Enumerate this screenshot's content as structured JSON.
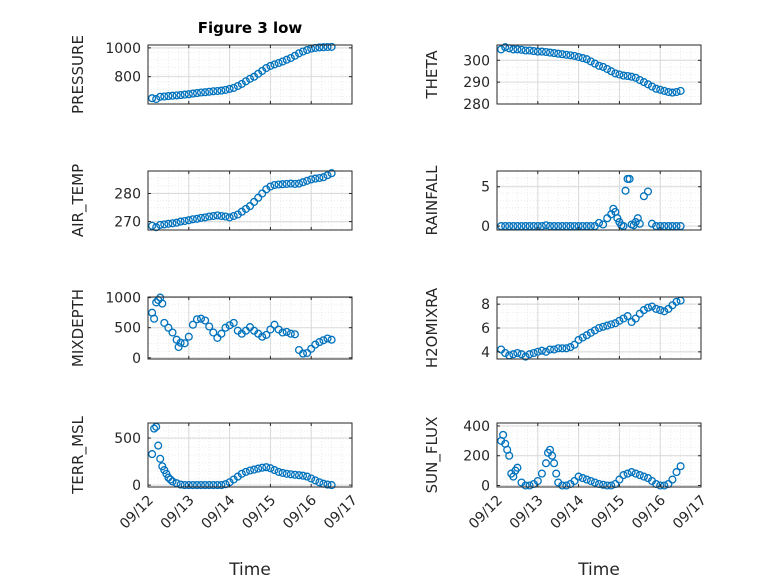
{
  "figure": {
    "title": "Figure 3 low",
    "marker_color": "#0072BD"
  },
  "chart_data": [
    {
      "type": "scatter",
      "id": "pressure",
      "title": "Figure 3 low",
      "ylabel": "PRESSURE",
      "ylim": [
        610,
        1020
      ],
      "yticks": [
        800,
        1000
      ],
      "xlim": [
        0,
        5
      ],
      "xtick_labels": [],
      "xlabel": "",
      "grid": true,
      "series": [
        {
          "x": [
            0.1,
            0.2,
            0.3,
            0.4,
            0.5,
            0.6,
            0.7,
            0.8,
            0.9,
            1.0,
            1.1,
            1.2,
            1.3,
            1.4,
            1.5,
            1.6,
            1.7,
            1.8,
            1.9,
            2.0,
            2.1,
            2.2,
            2.3,
            2.4,
            2.5,
            2.6,
            2.7,
            2.8,
            2.9,
            3.0,
            3.1,
            3.2,
            3.3,
            3.4,
            3.5,
            3.6,
            3.7,
            3.8,
            3.9,
            4.0,
            4.1,
            4.2,
            4.3,
            4.4,
            4.5
          ],
          "y": [
            650,
            645,
            660,
            662,
            665,
            668,
            670,
            672,
            675,
            678,
            682,
            686,
            690,
            692,
            695,
            698,
            700,
            703,
            708,
            715,
            722,
            735,
            750,
            768,
            785,
            800,
            820,
            840,
            860,
            875,
            885,
            895,
            905,
            918,
            930,
            945,
            962,
            975,
            985,
            995,
            1000,
            1003,
            1005,
            1006,
            1007
          ]
        }
      ]
    },
    {
      "type": "scatter",
      "id": "theta",
      "ylabel": "THETA",
      "ylim": [
        280,
        307
      ],
      "yticks": [
        280,
        290,
        300
      ],
      "xlim": [
        0,
        5
      ],
      "xtick_labels": [],
      "xlabel": "",
      "grid": true,
      "series": [
        {
          "x": [
            0.1,
            0.2,
            0.3,
            0.4,
            0.5,
            0.6,
            0.7,
            0.8,
            0.9,
            1.0,
            1.1,
            1.2,
            1.3,
            1.4,
            1.5,
            1.6,
            1.7,
            1.8,
            1.9,
            2.0,
            2.1,
            2.2,
            2.3,
            2.4,
            2.5,
            2.6,
            2.7,
            2.8,
            2.9,
            3.0,
            3.1,
            3.2,
            3.3,
            3.4,
            3.5,
            3.6,
            3.7,
            3.8,
            3.9,
            4.0,
            4.1,
            4.2,
            4.3,
            4.4,
            4.5
          ],
          "y": [
            305,
            306,
            305.5,
            305,
            305,
            304.8,
            304.5,
            304.5,
            304.2,
            304,
            304,
            303.8,
            303.5,
            303.3,
            303,
            302.8,
            302.5,
            302.3,
            302,
            301.5,
            301,
            300.5,
            299.5,
            298.5,
            297.5,
            297,
            296,
            295,
            294,
            293.5,
            293,
            292.8,
            292.5,
            292,
            291,
            290,
            289,
            288,
            287,
            286.5,
            286,
            285.5,
            285.2,
            285.5,
            286
          ]
        }
      ]
    },
    {
      "type": "scatter",
      "id": "airtemp",
      "ylabel": "AIR_TEMP",
      "ylim": [
        267,
        288
      ],
      "yticks": [
        270,
        280
      ],
      "xlim": [
        0,
        5
      ],
      "xtick_labels": [],
      "xlabel": "",
      "grid": true,
      "series": [
        {
          "x": [
            0.1,
            0.2,
            0.3,
            0.4,
            0.5,
            0.6,
            0.7,
            0.8,
            0.9,
            1.0,
            1.1,
            1.2,
            1.3,
            1.4,
            1.5,
            1.6,
            1.7,
            1.8,
            1.9,
            2.0,
            2.1,
            2.2,
            2.3,
            2.4,
            2.5,
            2.6,
            2.7,
            2.8,
            2.9,
            3.0,
            3.1,
            3.2,
            3.3,
            3.4,
            3.5,
            3.6,
            3.7,
            3.8,
            3.9,
            4.0,
            4.1,
            4.2,
            4.3,
            4.4,
            4.5
          ],
          "y": [
            268.5,
            268,
            268.8,
            269,
            269.2,
            269.4,
            269.6,
            270,
            270.2,
            270.5,
            270.8,
            271,
            271.3,
            271.5,
            271.8,
            272,
            272.2,
            272,
            271.8,
            271.5,
            272,
            272.5,
            273.5,
            274.5,
            275.5,
            277,
            278.5,
            280,
            281.5,
            282.5,
            283,
            283.2,
            283.3,
            283.4,
            283.5,
            283.4,
            283.5,
            284,
            284.5,
            285,
            285.3,
            285.5,
            285.8,
            286.5,
            287.2
          ]
        }
      ]
    },
    {
      "type": "scatter",
      "id": "rainfall",
      "ylabel": "RAINFALL",
      "ylim": [
        -0.5,
        7
      ],
      "yticks": [
        0,
        5
      ],
      "xlim": [
        0,
        5
      ],
      "xtick_labels": [],
      "xlabel": "",
      "grid": true,
      "series": [
        {
          "x": [
            0.1,
            0.2,
            0.3,
            0.4,
            0.5,
            0.6,
            0.7,
            0.8,
            0.9,
            1.0,
            1.1,
            1.2,
            1.3,
            1.4,
            1.5,
            1.6,
            1.7,
            1.8,
            1.9,
            2.0,
            2.1,
            2.2,
            2.3,
            2.4,
            2.5,
            2.6,
            2.7,
            2.8,
            2.85,
            2.9,
            2.95,
            3.0,
            3.05,
            3.1,
            3.15,
            3.2,
            3.25,
            3.3,
            3.35,
            3.4,
            3.45,
            3.5,
            3.6,
            3.7,
            3.8,
            3.9,
            4.0,
            4.1,
            4.2,
            4.3,
            4.4,
            4.5
          ],
          "y": [
            0,
            0,
            0,
            0,
            0,
            0,
            0,
            0,
            0,
            0,
            0,
            0.1,
            0,
            0,
            0,
            0,
            0,
            0,
            0,
            0,
            0,
            0,
            0,
            0,
            0.4,
            0.2,
            1.0,
            1.5,
            2.2,
            1.8,
            1.0,
            0.5,
            0.1,
            0,
            4.5,
            6.0,
            6.0,
            0.2,
            0.1,
            0.5,
            1.0,
            0.3,
            3.8,
            4.4,
            0.3,
            0,
            0,
            0,
            0,
            0,
            0,
            0
          ]
        }
      ]
    },
    {
      "type": "scatter",
      "id": "mixdepth",
      "ylabel": "MIXDEPTH",
      "ylim": [
        -20,
        1010
      ],
      "yticks": [
        0,
        500,
        1000
      ],
      "xlim": [
        0,
        5
      ],
      "xtick_labels": [],
      "xlabel": "",
      "grid": true,
      "series": [
        {
          "x": [
            0.1,
            0.15,
            0.2,
            0.25,
            0.3,
            0.35,
            0.4,
            0.5,
            0.6,
            0.7,
            0.75,
            0.8,
            0.9,
            1.0,
            1.1,
            1.2,
            1.3,
            1.4,
            1.5,
            1.6,
            1.7,
            1.8,
            1.9,
            2.0,
            2.1,
            2.2,
            2.3,
            2.4,
            2.5,
            2.6,
            2.7,
            2.8,
            2.9,
            3.0,
            3.1,
            3.2,
            3.3,
            3.4,
            3.5,
            3.6,
            3.7,
            3.8,
            3.9,
            4.0,
            4.1,
            4.2,
            4.3,
            4.4,
            4.5
          ],
          "y": [
            750,
            650,
            920,
            960,
            1000,
            900,
            580,
            500,
            420,
            300,
            180,
            250,
            240,
            350,
            550,
            640,
            650,
            620,
            520,
            420,
            330,
            400,
            500,
            540,
            580,
            450,
            400,
            450,
            510,
            450,
            400,
            350,
            380,
            470,
            550,
            470,
            420,
            430,
            400,
            390,
            130,
            70,
            80,
            150,
            220,
            260,
            290,
            320,
            300
          ]
        }
      ]
    },
    {
      "type": "scatter",
      "id": "h2omixra",
      "ylabel": "H2OMIXRA",
      "ylim": [
        3.4,
        8.6
      ],
      "yticks": [
        4,
        6,
        8
      ],
      "xlim": [
        0,
        5
      ],
      "xtick_labels": [],
      "xlabel": "",
      "grid": true,
      "series": [
        {
          "x": [
            0.1,
            0.2,
            0.3,
            0.4,
            0.5,
            0.6,
            0.7,
            0.8,
            0.9,
            1.0,
            1.1,
            1.2,
            1.3,
            1.4,
            1.5,
            1.6,
            1.7,
            1.8,
            1.9,
            2.0,
            2.1,
            2.2,
            2.3,
            2.4,
            2.5,
            2.6,
            2.7,
            2.8,
            2.9,
            3.0,
            3.1,
            3.2,
            3.3,
            3.4,
            3.5,
            3.6,
            3.7,
            3.8,
            3.9,
            4.0,
            4.1,
            4.2,
            4.3,
            4.4,
            4.5
          ],
          "y": [
            4.2,
            3.9,
            3.7,
            3.8,
            3.9,
            3.8,
            3.6,
            3.8,
            3.9,
            4.0,
            4.1,
            4.0,
            4.2,
            4.2,
            4.3,
            4.3,
            4.3,
            4.4,
            4.6,
            5.0,
            5.2,
            5.4,
            5.6,
            5.8,
            6.0,
            6.1,
            6.2,
            6.3,
            6.4,
            6.6,
            6.8,
            7.0,
            6.5,
            6.8,
            7.2,
            7.5,
            7.7,
            7.8,
            7.6,
            7.5,
            7.4,
            7.6,
            7.9,
            8.2,
            8.3
          ]
        }
      ]
    },
    {
      "type": "scatter",
      "id": "terrmsl",
      "ylabel": "TERR_MSL",
      "ylim": [
        -20,
        660
      ],
      "yticks": [
        0,
        500
      ],
      "xlim": [
        0,
        5
      ],
      "xtick_labels": [
        "09/12",
        "09/13",
        "09/14",
        "09/15",
        "09/16",
        "09/17"
      ],
      "xlabel": "Time",
      "grid": true,
      "series": [
        {
          "x": [
            0.1,
            0.15,
            0.2,
            0.25,
            0.3,
            0.35,
            0.4,
            0.45,
            0.5,
            0.55,
            0.6,
            0.7,
            0.8,
            0.9,
            1.0,
            1.1,
            1.2,
            1.3,
            1.4,
            1.5,
            1.6,
            1.7,
            1.8,
            1.9,
            2.0,
            2.1,
            2.2,
            2.3,
            2.4,
            2.5,
            2.6,
            2.7,
            2.8,
            2.9,
            3.0,
            3.1,
            3.2,
            3.3,
            3.4,
            3.5,
            3.6,
            3.7,
            3.8,
            3.9,
            4.0,
            4.1,
            4.2,
            4.3,
            4.4,
            4.5
          ],
          "y": [
            330,
            600,
            620,
            420,
            280,
            200,
            160,
            120,
            80,
            60,
            40,
            20,
            5,
            0,
            0,
            0,
            0,
            0,
            0,
            0,
            0,
            0,
            0,
            10,
            30,
            60,
            90,
            120,
            140,
            155,
            165,
            175,
            185,
            190,
            180,
            160,
            140,
            130,
            120,
            115,
            110,
            105,
            100,
            90,
            70,
            50,
            30,
            15,
            5,
            0
          ]
        }
      ]
    },
    {
      "type": "scatter",
      "id": "sunflux",
      "ylabel": "SUN_FLUX",
      "ylim": [
        -10,
        420
      ],
      "yticks": [
        0,
        200,
        400
      ],
      "xlim": [
        0,
        5
      ],
      "xtick_labels": [
        "09/12",
        "09/13",
        "09/14",
        "09/15",
        "09/16",
        "09/17"
      ],
      "xlabel": "Time",
      "grid": true,
      "series": [
        {
          "x": [
            0.1,
            0.15,
            0.2,
            0.25,
            0.3,
            0.35,
            0.4,
            0.45,
            0.5,
            0.6,
            0.7,
            0.8,
            0.9,
            1.0,
            1.1,
            1.2,
            1.25,
            1.3,
            1.35,
            1.4,
            1.45,
            1.5,
            1.6,
            1.7,
            1.8,
            1.9,
            2.0,
            2.1,
            2.2,
            2.3,
            2.4,
            2.5,
            2.6,
            2.7,
            2.8,
            2.9,
            3.0,
            3.1,
            3.2,
            3.3,
            3.4,
            3.5,
            3.6,
            3.7,
            3.8,
            3.9,
            4.0,
            4.1,
            4.2,
            4.3,
            4.4,
            4.5
          ],
          "y": [
            300,
            340,
            280,
            240,
            200,
            80,
            60,
            100,
            120,
            20,
            0,
            0,
            10,
            30,
            80,
            150,
            220,
            240,
            200,
            150,
            80,
            20,
            0,
            0,
            10,
            30,
            60,
            50,
            40,
            30,
            20,
            10,
            5,
            0,
            0,
            10,
            40,
            70,
            80,
            90,
            80,
            70,
            60,
            50,
            30,
            10,
            0,
            0,
            10,
            40,
            90,
            130
          ]
        }
      ]
    }
  ]
}
